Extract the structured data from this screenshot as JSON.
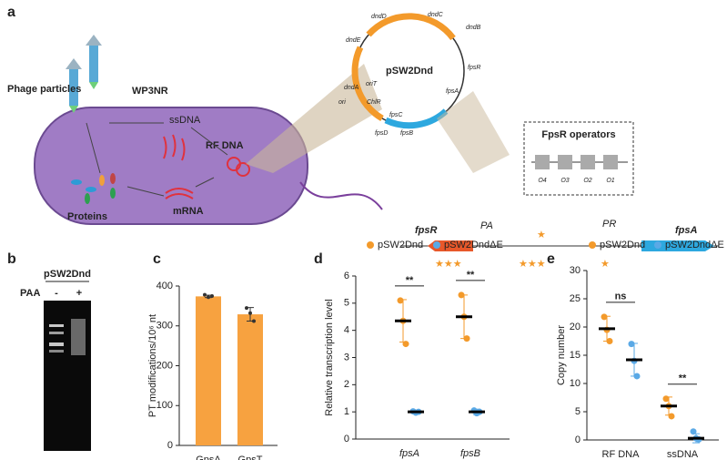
{
  "diagram": {
    "label": "a",
    "host": "WP3NR",
    "phage": "Phage particles",
    "ssdna": "ssDNA",
    "rfdna": "RF DNA",
    "mrna": "mRNA",
    "proteins": "Proteins",
    "plasmid": "pSW2Dnd",
    "plasmid_genes": [
      "dndD",
      "dndC",
      "dndB",
      "dndE",
      "dndA",
      "oriT",
      "ChlR",
      "ori",
      "fpsC",
      "fpsD",
      "fpsB",
      "fpsA",
      "fpsR"
    ],
    "operators_title": "FpsR operators",
    "operators": [
      "O4",
      "O3",
      "O2",
      "O1"
    ],
    "genes": [
      "fpsR",
      "fpsA"
    ],
    "promoters": [
      "PA",
      "PR"
    ]
  },
  "gel": {
    "label": "b",
    "sample": "pSW2Dnd",
    "treatment": "PAA",
    "lanes": [
      "-",
      "+"
    ]
  },
  "chart_data": [
    {
      "type": "bar",
      "panel": "c",
      "ylabel": "PT modifications/10⁶ nt",
      "categories": [
        "GpsA",
        "GpsT"
      ],
      "values": [
        374,
        329
      ],
      "errors": [
        3,
        17
      ],
      "points": [
        [
          378,
          372,
          375
        ],
        [
          345,
          332,
          312
        ]
      ],
      "color": "#f7a240",
      "ylim": [
        0,
        400
      ],
      "yticks": [
        0,
        100,
        200,
        300,
        400
      ]
    },
    {
      "type": "dot",
      "panel": "d",
      "ylabel": "Relative transcription level",
      "categories": [
        "fpsA",
        "fpsB"
      ],
      "series": [
        {
          "name": "pSW2Dnd",
          "color": "#f39a2b",
          "values": [
            4.35,
            4.5
          ],
          "errors": [
            0.78,
            0.8
          ],
          "points": [
            [
              5.1,
              4.35,
              3.5
            ],
            [
              5.3,
              4.5,
              3.7
            ]
          ]
        },
        {
          "name": "pSW2DndΔE",
          "color": "#5aa9e6",
          "values": [
            1.0,
            1.0
          ],
          "errors": [
            0.05,
            0.1
          ],
          "points": [
            [
              1.02,
              0.97,
              1.0
            ],
            [
              1.05,
              0.95,
              1.0
            ]
          ]
        }
      ],
      "annotations": [
        "**",
        "**"
      ],
      "ylim": [
        0,
        6
      ],
      "yticks": [
        0,
        1,
        2,
        3,
        4,
        5,
        6
      ]
    },
    {
      "type": "dot",
      "panel": "e",
      "ylabel": "Copy number",
      "categories": [
        "RF DNA",
        "ssDNA"
      ],
      "series": [
        {
          "name": "pSW2Dnd",
          "color": "#f39a2b",
          "values": [
            19.7,
            6.0
          ],
          "errors": [
            2.2,
            1.6
          ],
          "points": [
            [
              21.8,
              19.5,
              17.5
            ],
            [
              7.3,
              6.0,
              4.2
            ]
          ]
        },
        {
          "name": "pSW2DndΔE",
          "color": "#5aa9e6",
          "values": [
            14.2,
            0.3
          ],
          "errors": [
            2.9,
            0.8
          ],
          "points": [
            [
              17.0,
              14.0,
              11.3
            ],
            [
              1.5,
              0.3,
              0.1
            ]
          ]
        }
      ],
      "annotations": [
        "ns",
        "**"
      ],
      "ylim": [
        0,
        30
      ],
      "yticks": [
        0,
        5,
        10,
        15,
        20,
        25,
        30
      ]
    }
  ]
}
